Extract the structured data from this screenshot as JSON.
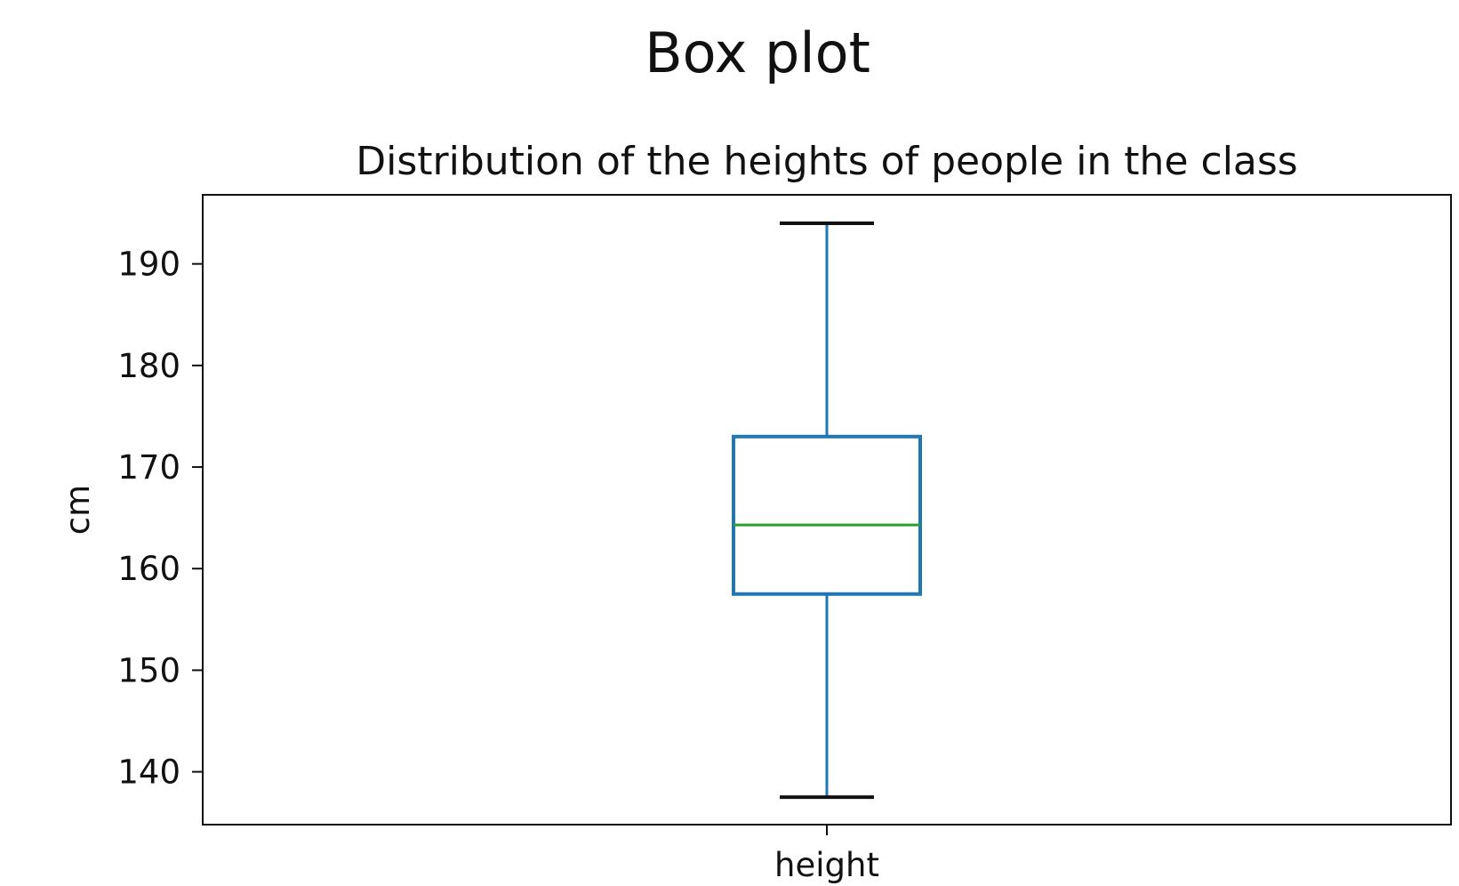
{
  "figure_title": "Box plot",
  "chart_data": {
    "type": "box",
    "title": "Distribution of the heights of people in the class",
    "xlabel": "",
    "ylabel": "cm",
    "categories": [
      "height"
    ],
    "boxes": [
      {
        "category": "height",
        "whisker_low": 137.5,
        "q1": 157.5,
        "median": 164.3,
        "q3": 173,
        "whisker_high": 194
      }
    ],
    "ylim": [
      134.8,
      196.8
    ],
    "yticks": [
      140,
      150,
      160,
      170,
      180,
      190
    ],
    "grid": false,
    "colors": {
      "box": "#1f77b4",
      "median": "#2ca02c",
      "caps": "#111111",
      "axes": "#111111"
    }
  }
}
